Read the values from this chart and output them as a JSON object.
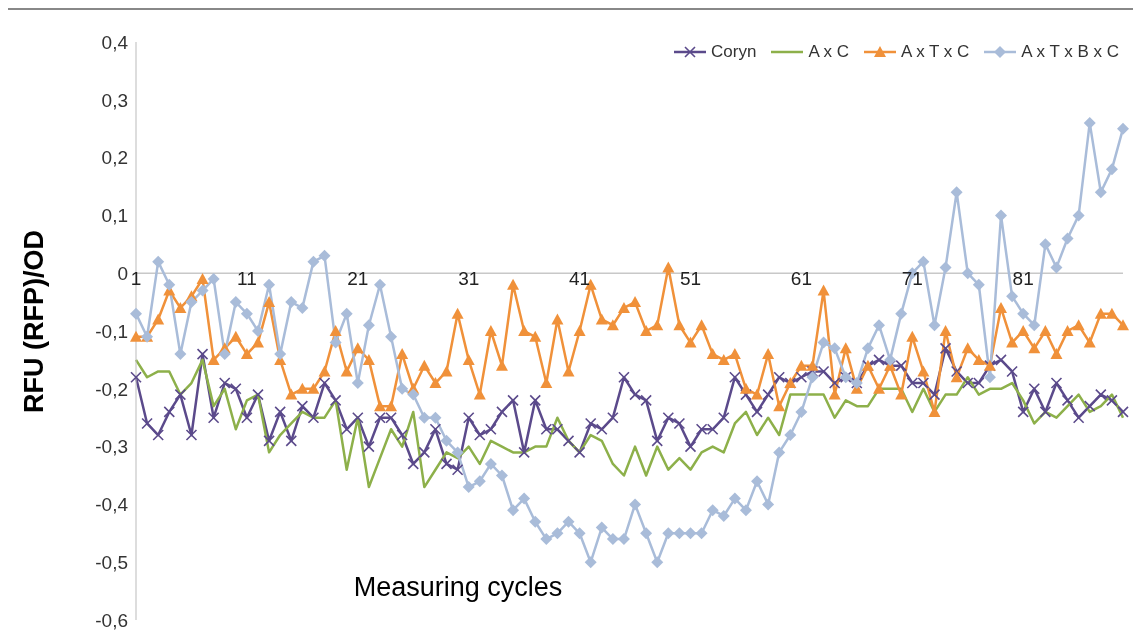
{
  "chart_data": {
    "type": "line",
    "xlabel": "Measuring cycles",
    "ylabel": "RFU (RFP)/OD",
    "categories": [
      "1",
      null,
      null,
      null,
      null,
      null,
      null,
      null,
      null,
      null,
      "11",
      null,
      null,
      null,
      null,
      null,
      null,
      null,
      null,
      null,
      "21",
      null,
      null,
      null,
      null,
      null,
      null,
      null,
      null,
      null,
      "31",
      null,
      null,
      null,
      null,
      null,
      null,
      null,
      null,
      null,
      "41",
      null,
      null,
      null,
      null,
      null,
      null,
      null,
      null,
      null,
      "51",
      null,
      null,
      null,
      null,
      null,
      null,
      null,
      null,
      null,
      "61",
      null,
      null,
      null,
      null,
      null,
      null,
      null,
      null,
      null,
      "71",
      null,
      null,
      null,
      null,
      null,
      null,
      null,
      null,
      null,
      "81",
      null,
      null,
      null,
      null,
      null,
      null,
      null,
      null,
      null
    ],
    "ylim": [
      -0.6,
      0.4
    ],
    "yticks": [
      {
        "value": -0.6,
        "label": "-0,6"
      },
      {
        "value": -0.5,
        "label": "-0,5"
      },
      {
        "value": -0.4,
        "label": "-0,4"
      },
      {
        "value": -0.3,
        "label": "-0,3"
      },
      {
        "value": -0.2,
        "label": "-0,2"
      },
      {
        "value": -0.1,
        "label": "-0,1"
      },
      {
        "value": 0,
        "label": "0"
      },
      {
        "value": 0.1,
        "label": "0,1"
      },
      {
        "value": 0.2,
        "label": "0,2"
      },
      {
        "value": 0.3,
        "label": "0,3"
      },
      {
        "value": 0.4,
        "label": "0,4"
      }
    ],
    "legend": "top right",
    "series": [
      {
        "name": "Coryn",
        "color": "#5b4a8b",
        "marker": "cross",
        "values": [
          -0.18,
          -0.26,
          -0.28,
          -0.24,
          -0.21,
          -0.28,
          -0.14,
          -0.25,
          -0.19,
          -0.2,
          -0.25,
          -0.21,
          -0.29,
          -0.24,
          -0.29,
          -0.23,
          -0.25,
          -0.19,
          -0.22,
          -0.27,
          -0.25,
          -0.3,
          -0.25,
          -0.25,
          -0.28,
          -0.33,
          -0.31,
          -0.27,
          -0.33,
          -0.34,
          -0.25,
          -0.28,
          -0.27,
          -0.24,
          -0.22,
          -0.31,
          -0.22,
          -0.27,
          -0.27,
          -0.29,
          -0.31,
          -0.26,
          -0.27,
          -0.25,
          -0.18,
          -0.21,
          -0.22,
          -0.29,
          -0.25,
          -0.26,
          -0.3,
          -0.27,
          -0.27,
          -0.25,
          -0.18,
          -0.21,
          -0.24,
          -0.21,
          -0.18,
          -0.19,
          -0.18,
          -0.17,
          -0.17,
          -0.19,
          -0.18,
          -0.19,
          -0.16,
          -0.15,
          -0.16,
          -0.16,
          -0.19,
          -0.19,
          -0.21,
          -0.13,
          -0.17,
          -0.19,
          -0.19,
          -0.16,
          -0.15,
          -0.17,
          -0.24,
          -0.2,
          -0.24,
          -0.19,
          -0.22,
          -0.25,
          -0.23,
          -0.21,
          -0.22,
          -0.24
        ]
      },
      {
        "name": "A x C",
        "color": "#8db04a",
        "marker": "none",
        "values": [
          -0.15,
          -0.18,
          -0.17,
          -0.17,
          -0.21,
          -0.19,
          -0.15,
          -0.23,
          -0.2,
          -0.27,
          -0.22,
          -0.21,
          -0.31,
          -0.28,
          -0.26,
          -0.24,
          -0.25,
          -0.25,
          -0.22,
          -0.34,
          -0.25,
          -0.37,
          -0.32,
          -0.27,
          -0.3,
          -0.24,
          -0.37,
          -0.34,
          -0.31,
          -0.32,
          -0.3,
          -0.33,
          -0.29,
          -0.3,
          -0.31,
          -0.31,
          -0.3,
          -0.3,
          -0.25,
          -0.29,
          -0.31,
          -0.28,
          -0.29,
          -0.33,
          -0.35,
          -0.3,
          -0.35,
          -0.3,
          -0.34,
          -0.32,
          -0.34,
          -0.31,
          -0.3,
          -0.31,
          -0.26,
          -0.24,
          -0.28,
          -0.25,
          -0.28,
          -0.21,
          -0.21,
          -0.21,
          -0.21,
          -0.25,
          -0.22,
          -0.23,
          -0.23,
          -0.2,
          -0.2,
          -0.2,
          -0.24,
          -0.2,
          -0.24,
          -0.21,
          -0.21,
          -0.18,
          -0.21,
          -0.2,
          -0.2,
          -0.19,
          -0.22,
          -0.26,
          -0.24,
          -0.25,
          -0.23,
          -0.21,
          -0.24,
          -0.23,
          -0.21,
          -0.25
        ]
      },
      {
        "name": "A x T x C",
        "color": "#f0913a",
        "marker": "triangle",
        "values": [
          -0.11,
          -0.11,
          -0.08,
          -0.03,
          -0.06,
          -0.04,
          -0.01,
          -0.15,
          -0.13,
          -0.11,
          -0.14,
          -0.12,
          -0.05,
          -0.15,
          -0.21,
          -0.2,
          -0.2,
          -0.17,
          -0.1,
          -0.17,
          -0.13,
          -0.15,
          -0.23,
          -0.23,
          -0.14,
          -0.2,
          -0.16,
          -0.19,
          -0.17,
          -0.07,
          -0.15,
          -0.21,
          -0.1,
          -0.16,
          -0.02,
          -0.1,
          -0.11,
          -0.19,
          -0.08,
          -0.17,
          -0.1,
          -0.02,
          -0.08,
          -0.09,
          -0.06,
          -0.05,
          -0.1,
          -0.09,
          0.01,
          -0.09,
          -0.12,
          -0.09,
          -0.14,
          -0.15,
          -0.14,
          -0.2,
          -0.21,
          -0.14,
          -0.23,
          -0.19,
          -0.16,
          -0.16,
          -0.03,
          -0.21,
          -0.13,
          -0.2,
          -0.16,
          -0.2,
          -0.16,
          -0.21,
          -0.11,
          -0.17,
          -0.24,
          -0.1,
          -0.18,
          -0.13,
          -0.15,
          -0.16,
          -0.06,
          -0.12,
          -0.1,
          -0.13,
          -0.1,
          -0.14,
          -0.1,
          -0.09,
          -0.12,
          -0.07,
          -0.07,
          -0.09
        ]
      },
      {
        "name": "A x T x B x C",
        "color": "#a9bcd9",
        "marker": "diamond",
        "values": [
          -0.07,
          -0.11,
          0.02,
          -0.02,
          -0.14,
          -0.05,
          -0.03,
          -0.01,
          -0.14,
          -0.05,
          -0.07,
          -0.1,
          -0.02,
          -0.14,
          -0.05,
          -0.06,
          0.02,
          0.03,
          -0.12,
          -0.07,
          -0.19,
          -0.09,
          -0.02,
          -0.11,
          -0.2,
          -0.21,
          -0.25,
          -0.25,
          -0.29,
          -0.31,
          -0.37,
          -0.36,
          -0.33,
          -0.35,
          -0.41,
          -0.39,
          -0.43,
          -0.46,
          -0.45,
          -0.43,
          -0.45,
          -0.5,
          -0.44,
          -0.46,
          -0.46,
          -0.4,
          -0.45,
          -0.5,
          -0.45,
          -0.45,
          -0.45,
          -0.45,
          -0.41,
          -0.42,
          -0.39,
          -0.41,
          -0.36,
          -0.4,
          -0.31,
          -0.28,
          -0.24,
          -0.18,
          -0.12,
          -0.13,
          -0.18,
          -0.19,
          -0.13,
          -0.09,
          -0.15,
          -0.07,
          0.0,
          0.02,
          -0.09,
          0.01,
          0.14,
          0.0,
          -0.02,
          -0.18,
          0.1,
          -0.04,
          -0.07,
          -0.09,
          0.05,
          0.01,
          0.06,
          0.1,
          0.26,
          0.14,
          0.18,
          0.25
        ]
      }
    ]
  }
}
